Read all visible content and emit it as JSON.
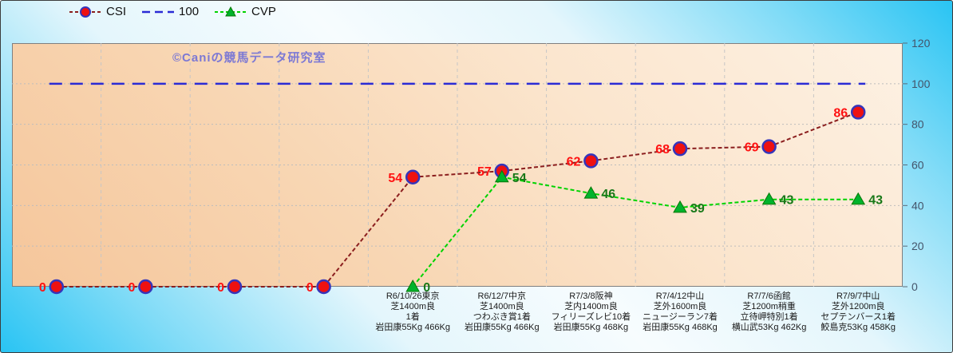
{
  "chart_data": {
    "type": "line",
    "title": "",
    "watermark": "©Caniの競馬データ研究室",
    "ylim": [
      0,
      120
    ],
    "yticks": [
      0,
      20,
      40,
      60,
      80,
      100,
      120
    ],
    "y_axis_side": "right",
    "grid": true,
    "legend_position": "top-left",
    "legend_labels": [
      "CSI",
      "100",
      "CVP"
    ],
    "categories": [
      [],
      [],
      [],
      [],
      [
        "R6/10/26東京",
        "芝1400m良",
        "1着",
        "岩田康55Kg 466Kg"
      ],
      [
        "R6/12/7中京",
        "芝1400m良",
        "つわぶき賞1着",
        "岩田康55Kg 466Kg"
      ],
      [
        "R7/3/8阪神",
        "芝内1400m良",
        "フィリーズレビ10着",
        "岩田康55Kg 468Kg"
      ],
      [
        "R7/4/12中山",
        "芝外1600m良",
        "ニュージーラン7着",
        "岩田康55Kg 468Kg"
      ],
      [
        "R7/7/6函館",
        "芝1200m稍重",
        "立待岬特別1着",
        "横山武53Kg 462Kg"
      ],
      [
        "R7/9/7中山",
        "芝外1200m良",
        "セプテンバース1着",
        "鮫島克53Kg 458Kg"
      ]
    ],
    "series": [
      {
        "name": "CSI",
        "marker": "circle",
        "line_color": "#8b1e1e",
        "marker_fill": "#ee1111",
        "marker_stroke": "#3535bb",
        "label_color": "#ff1111",
        "values": [
          0,
          0,
          0,
          0,
          54,
          57,
          62,
          68,
          69,
          86
        ]
      },
      {
        "name": "100",
        "reference": true,
        "line_color": "#2b2bd5",
        "value": 100
      },
      {
        "name": "CVP",
        "marker": "triangle",
        "line_color": "#00d300",
        "marker_fill": "#00b32c",
        "marker_stroke": "#067806",
        "label_color": "#187818",
        "values": [
          null,
          null,
          null,
          null,
          0,
          54,
          46,
          39,
          43,
          43
        ]
      }
    ],
    "colors": {
      "background_cyan": "#29c4f3",
      "plot_peach_dark": "#f5c69b",
      "plot_peach_light": "#fdf1e3",
      "gridline": "#bdbdbd",
      "axis_tick_text": "#44546a",
      "category_text": "#1a1a1a",
      "watermark_purple": "#6e6ed7"
    }
  }
}
